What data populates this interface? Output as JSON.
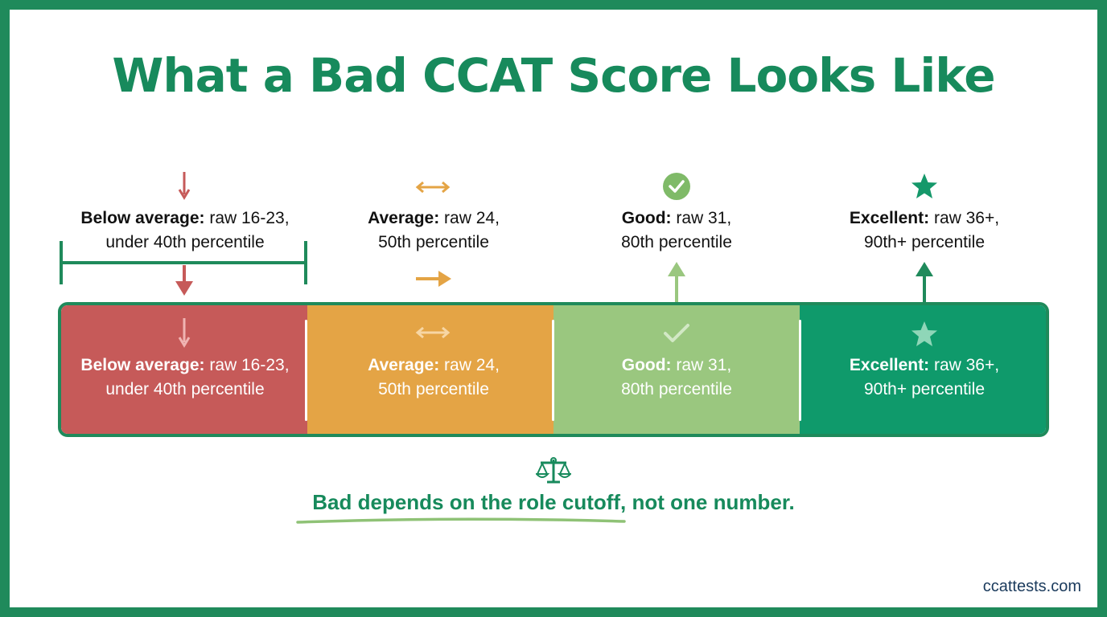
{
  "title": "What a Bad CCAT Score Looks Like",
  "colors": {
    "border": "#1f8a5b",
    "title": "#178a5c",
    "below_average": "#c65a59",
    "average": "#e4a445",
    "good": "#9ac77f",
    "excellent": "#0f9a6b",
    "underline": "#8fc276"
  },
  "categories": [
    {
      "id": "below",
      "icon": "down-arrow-icon",
      "label_bold": "Below average:",
      "label_rest": " raw 16-23,",
      "label_line2": "under 40th percentile"
    },
    {
      "id": "average",
      "icon": "double-arrow-icon",
      "label_bold": "Average:",
      "label_rest": " raw 24,",
      "label_line2": "50th percentile"
    },
    {
      "id": "good",
      "icon": "check-circle-icon",
      "label_bold": "Good:",
      "label_rest": " raw 31,",
      "label_line2": "80th percentile"
    },
    {
      "id": "excellent",
      "icon": "star-icon",
      "label_bold": "Excellent:",
      "label_rest": " raw 36+,",
      "label_line2": "90th+ percentile"
    }
  ],
  "note": "Bad depends on the role cutoff, not one number.",
  "note_icon": "balance-scale-icon",
  "footer": "ccattests.com"
}
